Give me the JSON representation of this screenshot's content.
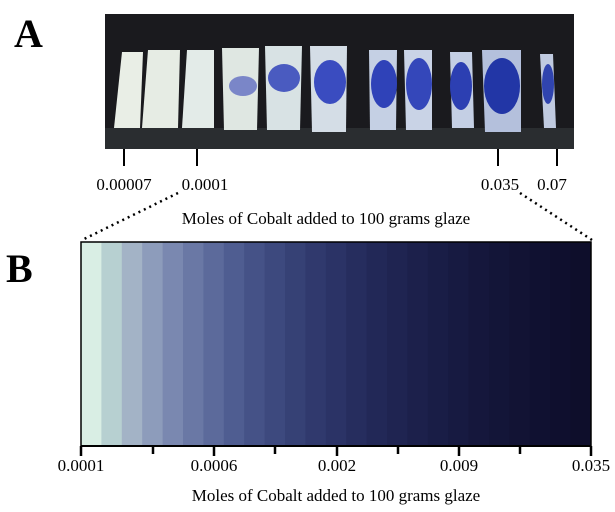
{
  "panels": [
    {
      "label": "A",
      "tick_labels": [
        "0.00007",
        "0.0001",
        "0.035",
        "0.07"
      ],
      "axis_label": "Moles of Cobalt added to 100 grams glaze"
    },
    {
      "label": "B",
      "tick_labels": [
        "0.0001",
        "0.0006",
        "0.002",
        "0.009",
        "0.035"
      ],
      "axis_label": "Moles of Cobalt added to 100 grams glaze",
      "swatches": [
        "#d9eee4",
        "#b7d0d1",
        "#a3b3c6",
        "#8d9cbb",
        "#7a88b0",
        "#6a78a5",
        "#5c6a9b",
        "#4f5d91",
        "#455287",
        "#3d497e",
        "#364175",
        "#30396d",
        "#2b3366",
        "#262d5e",
        "#222857",
        "#1f2451",
        "#1c204b",
        "#191d46",
        "#171a41",
        "#15173c",
        "#131538",
        "#121334",
        "#101131",
        "#0f0f2e",
        "#0e0e2b"
      ]
    }
  ]
}
